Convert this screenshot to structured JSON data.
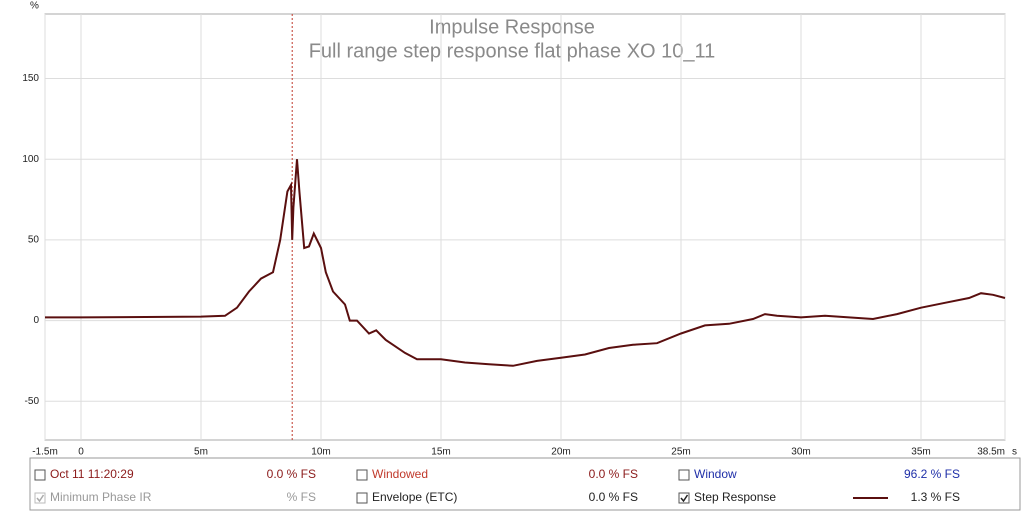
{
  "chart_data": {
    "type": "line",
    "title": "Impulse Response",
    "subtitle": "Full range step response flat phase XO 10_11",
    "y_unit": "%",
    "x_unit": "s",
    "x": [
      -1.5,
      0,
      5,
      6,
      6.5,
      7,
      7.5,
      8,
      8.3,
      8.6,
      8.75,
      8.8,
      8.85,
      9.0,
      9.1,
      9.3,
      9.5,
      9.7,
      10,
      10.2,
      10.5,
      11,
      11.2,
      11.5,
      12,
      12.3,
      12.7,
      13,
      13.5,
      14,
      15,
      16,
      17,
      18,
      19,
      20,
      21,
      22,
      23,
      24,
      25,
      26,
      27,
      28,
      28.5,
      29,
      30,
      31,
      32,
      33,
      34,
      35,
      36,
      37,
      37.5,
      38,
      38.5
    ],
    "series": [
      {
        "name": "Step Response",
        "color": "#5a0f0f",
        "values": [
          2,
          2,
          2.5,
          3,
          8,
          18,
          26,
          30,
          50,
          80,
          84,
          50,
          70,
          100,
          80,
          45,
          46,
          54,
          45,
          30,
          18,
          10,
          0,
          0,
          -8,
          -6,
          -12,
          -15,
          -20,
          -24,
          -24,
          -26,
          -27,
          -28,
          -25,
          -23,
          -21,
          -17,
          -15,
          -14,
          -8,
          -3,
          -2,
          1,
          4,
          3,
          2,
          3,
          2,
          1,
          4,
          8,
          11,
          14,
          17,
          16,
          14
        ]
      }
    ],
    "marker_x": 8.8,
    "xlim": [
      -1.5,
      38.5
    ],
    "ylim": [
      -74,
      190
    ],
    "xticks": [
      {
        "value": -1.5,
        "label": "-1.5m"
      },
      0,
      {
        "value": 5,
        "label": "5m"
      },
      {
        "value": 10,
        "label": "10m"
      },
      {
        "value": 15,
        "label": "15m"
      },
      {
        "value": 20,
        "label": "20m"
      },
      {
        "value": 25,
        "label": "25m"
      },
      {
        "value": 30,
        "label": "30m"
      },
      {
        "value": 35,
        "label": "35m"
      },
      {
        "value": 38.5,
        "label": "38.5m"
      }
    ],
    "yticks": [
      -50,
      0,
      50,
      100,
      150
    ],
    "grid": true
  },
  "legend_panel": [
    {
      "label": "Oct 11 11:20:29",
      "value_text": "0.0 % FS",
      "checked": false,
      "color": "#8b1a1a",
      "value_color": "#8b1a1a"
    },
    {
      "label": "Windowed",
      "value_text": "0.0 % FS",
      "checked": false,
      "color": "#c0392b",
      "value_color": "#8b1a1a"
    },
    {
      "label": "Window",
      "value_text": "96.2 % FS",
      "checked": false,
      "color": "#1f2fa8",
      "value_color": "#1f2fa8"
    },
    {
      "label": "Minimum Phase IR",
      "value_text": "% FS",
      "checked": true,
      "color": "#999999",
      "value_color": "#999999"
    },
    {
      "label": "Envelope (ETC)",
      "value_text": "0.0 % FS",
      "checked": false,
      "color": "#222222",
      "value_color": "#222222"
    },
    {
      "label": "Step Response",
      "value_text": "1.3 % FS",
      "checked": true,
      "color": "#222222",
      "value_color": "#222222",
      "swatch": "#5a0f0f"
    }
  ]
}
